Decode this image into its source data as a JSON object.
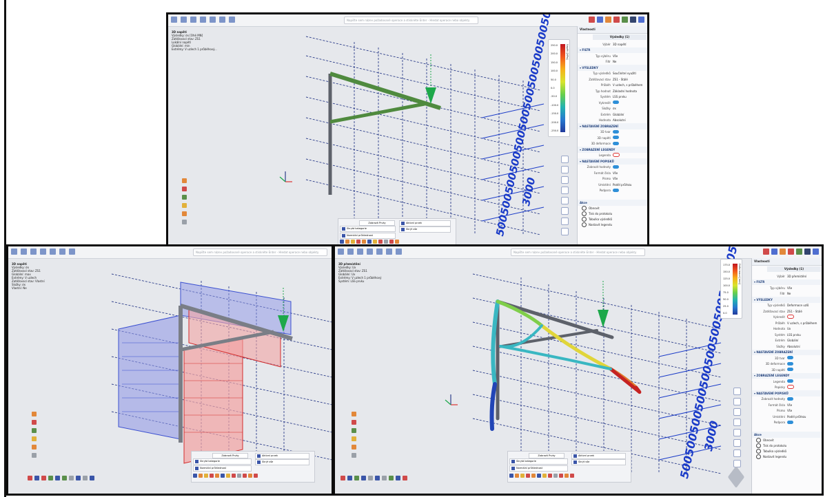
{
  "search_placeholder": "Napište sem název požadované operace a stiskněte Enter - Hledat operace nebo objekty",
  "dims": {
    "long": "5005005005005005005005005005005005005005005005005005005005005005005005005005000",
    "short": "3000"
  },
  "top_window": {
    "info": [
      "3D napětí",
      "Výsledky: σx [Ohě MN]",
      "Zatěžovací stav: ZS1",
      "Lokální napětí",
      "Globální: min",
      "Extrémy: V uzlech 1 průběhový..."
    ],
    "legend": {
      "title": "Napětí [MPa]",
      "values": [
        "250.0",
        "200.0",
        "150.0",
        "100.0",
        "50.0",
        "0.0",
        "-50.0",
        "-100.0",
        "-150.0",
        "-200.0",
        "-250.0"
      ]
    },
    "panel": {
      "title": "Vlastnosti",
      "name": "Výsledky (1)",
      "rows": [
        {
          "label": "Výběr",
          "value": "3D napětí",
          "type": "text"
        },
        {
          "label": "FILTR",
          "value": "",
          "type": "section"
        },
        {
          "label": "Typ výběru",
          "value": "Vše",
          "type": "text"
        },
        {
          "label": "Filtr",
          "value": "Ne",
          "type": "text"
        },
        {
          "label": "VÝSLEDKY",
          "value": "",
          "type": "section"
        },
        {
          "label": "Typ výsledků",
          "value": "Součinitel využití",
          "type": "text"
        },
        {
          "label": "Zatěžovací stav",
          "value": "ZS1 - Stálé",
          "type": "text"
        },
        {
          "label": "Průběh",
          "value": "V uzlech, s průběhem",
          "type": "text"
        },
        {
          "label": "Typ hodnot",
          "value": "Základní hodnota",
          "type": "text"
        },
        {
          "label": "Systém",
          "value": "LSS prvku",
          "type": "text"
        },
        {
          "label": "Vykreslit",
          "value": "",
          "type": "toggle"
        },
        {
          "label": "Složky",
          "value": "σx",
          "type": "text"
        },
        {
          "label": "Extrém",
          "value": "Globální",
          "type": "text"
        },
        {
          "label": "Hodnota",
          "value": "Absolutní",
          "type": "text"
        },
        {
          "label": "NASTAVENÍ ZOBRAZENÍ",
          "value": "",
          "type": "section"
        },
        {
          "label": "3D tvar",
          "value": "",
          "type": "toggle"
        },
        {
          "label": "3D napětí",
          "value": "",
          "type": "toggle"
        },
        {
          "label": "3D deformace",
          "value": "",
          "type": "toggle"
        },
        {
          "label": "ZOBRAZENÍ LEGENDY",
          "value": "",
          "type": "section"
        },
        {
          "label": "Legenda",
          "value": "",
          "type": "off"
        },
        {
          "label": "NASTAVENÍ POPISKŮ",
          "value": "",
          "type": "section"
        },
        {
          "label": "Zobrazit hodnoty",
          "value": "",
          "type": "toggle"
        },
        {
          "label": "Formát čísla",
          "value": "Vše",
          "type": "text"
        },
        {
          "label": "Písmo",
          "value": "Vše",
          "type": "text"
        },
        {
          "label": "Umístění",
          "value": "Podél průřezu",
          "type": "text"
        },
        {
          "label": "Podpora",
          "value": "",
          "type": "toggle"
        }
      ],
      "actions_header": "Akce",
      "actions": [
        "Obnovit",
        "Tisk do protokolu",
        "Tabulka výsledků",
        "Nastavit legendu"
      ]
    },
    "ribbon": {
      "tab": "Zobrazit Prvky",
      "boxes": [
        "Skrytá kategorie",
        "Aktivní prvek",
        "Normální průhlednost",
        "Skrýt vše"
      ]
    }
  },
  "left_window": {
    "info": [
      "3D napětí",
      "Výsledky: σx",
      "Zatěžovací stav: ZS1",
      "Globální: max",
      "Extrémy: V uzlech",
      "Zatěžovací stav: Vlastní",
      "Složky: σx",
      "Vlastní: Ne"
    ]
  },
  "right_window": {
    "info": [
      "3D přemístění",
      "Výsledky: Ux",
      "Zatěžovací stav: ZS1",
      "Globální: Ux",
      "Extrémy: V uzlech 1 průběhový",
      "Systém: LSS prvku"
    ],
    "legend": {
      "title": "Deformace [mm]",
      "values": [
        "175.0",
        "150.0",
        "125.0",
        "100.0",
        "75.0",
        "50.0",
        "25.0",
        "0.0"
      ]
    },
    "panel": {
      "title": "Vlastnosti",
      "name": "Výsledky (1)",
      "rows": [
        {
          "label": "Výběr",
          "value": "3D přemístění",
          "type": "text"
        },
        {
          "label": "FILTR",
          "value": "",
          "type": "section"
        },
        {
          "label": "Typ výběru",
          "value": "Vše",
          "type": "text"
        },
        {
          "label": "Filtr",
          "value": "Ne",
          "type": "text"
        },
        {
          "label": "VÝSLEDKY",
          "value": "",
          "type": "section"
        },
        {
          "label": "Typ výsledků",
          "value": "Deformace uzlů",
          "type": "text"
        },
        {
          "label": "Zatěžovací stav",
          "value": "ZS1 - Stálé",
          "type": "text"
        },
        {
          "label": "Vykreslit",
          "value": "",
          "type": "off"
        },
        {
          "label": "Průběh",
          "value": "V uzlech, s průběhem",
          "type": "text"
        },
        {
          "label": "Hodnota",
          "value": "Ux",
          "type": "text"
        },
        {
          "label": "Systém",
          "value": "LSS prvku",
          "type": "text"
        },
        {
          "label": "Extrém",
          "value": "Globální",
          "type": "text"
        },
        {
          "label": "Složky",
          "value": "Absolutní",
          "type": "text"
        },
        {
          "label": "NASTAVENÍ ZOBRAZENÍ",
          "value": "",
          "type": "section"
        },
        {
          "label": "3D tvar",
          "value": "",
          "type": "toggle"
        },
        {
          "label": "3D deformace",
          "value": "",
          "type": "toggle"
        },
        {
          "label": "3D napětí",
          "value": "",
          "type": "toggle"
        },
        {
          "label": "ZOBRAZENÍ LEGENDY",
          "value": "",
          "type": "section"
        },
        {
          "label": "Legenda",
          "value": "",
          "type": "toggle"
        },
        {
          "label": "Popisky",
          "value": "",
          "type": "off"
        },
        {
          "label": "NASTAVENÍ POPISKŮ",
          "value": "",
          "type": "section"
        },
        {
          "label": "Zobrazit hodnoty",
          "value": "",
          "type": "toggle"
        },
        {
          "label": "Formát čísla",
          "value": "Vše",
          "type": "text"
        },
        {
          "label": "Písmo",
          "value": "Vše",
          "type": "text"
        },
        {
          "label": "Umístění",
          "value": "Podél průřezu",
          "type": "text"
        },
        {
          "label": "Podpora",
          "value": "",
          "type": "toggle"
        }
      ],
      "actions_header": "Akce",
      "actions": [
        "Obnovit",
        "Tisk do protokolu",
        "Tabulka výsledků",
        "Nastavit legendu"
      ]
    }
  },
  "colors": {
    "structure": "#6b6f78",
    "load": "#1da84a",
    "blue_diagram": "#3a4fd0",
    "red_diagram": "#d32b2b",
    "dimension": "#1a3bc8"
  }
}
